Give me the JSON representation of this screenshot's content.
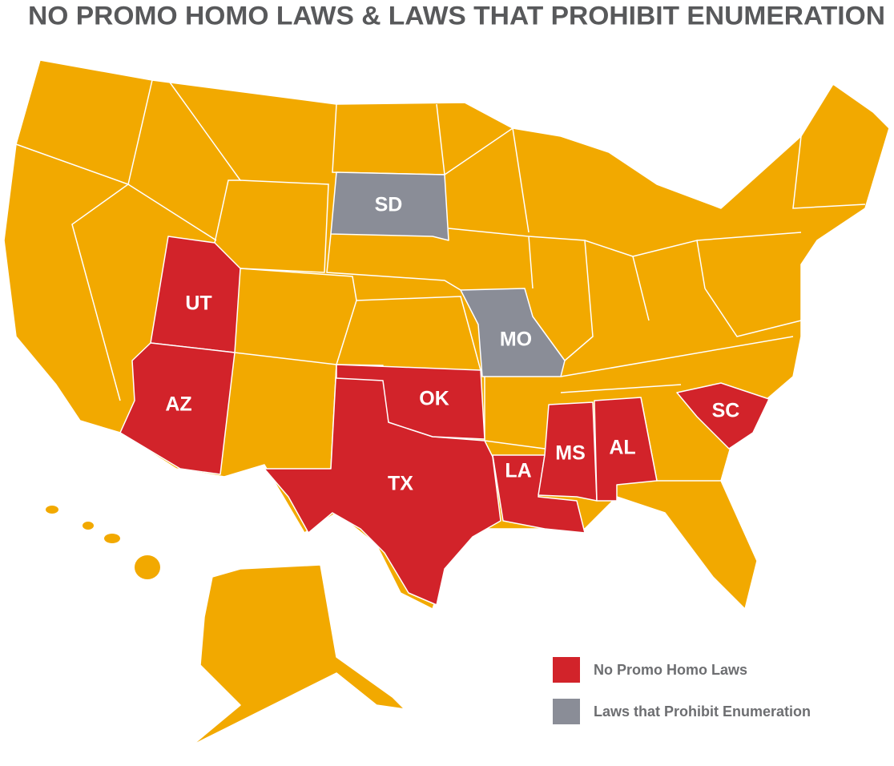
{
  "title": "NO PROMO HOMO LAWS & LAWS THAT PROHIBIT ENUMERATION",
  "base_color": "#f2a900",
  "states": [
    {
      "label": "SD",
      "color": "#8a8d97"
    },
    {
      "label": "MO",
      "color": "#8a8d97"
    },
    {
      "label": "UT",
      "color": "#d2232a"
    },
    {
      "label": "AZ",
      "color": "#d2232a"
    },
    {
      "label": "TX",
      "color": "#d2232a"
    },
    {
      "label": "OK",
      "color": "#d2232a"
    },
    {
      "label": "LA",
      "color": "#d2232a"
    },
    {
      "label": "MS",
      "color": "#d2232a"
    },
    {
      "label": "AL",
      "color": "#d2232a"
    },
    {
      "label": "SC",
      "color": "#d2232a"
    }
  ],
  "legend": [
    {
      "label": "No Promo Homo Laws",
      "color": "#d2232a"
    },
    {
      "label": "Laws that Prohibit Enumeration",
      "color": "#8a8d97"
    }
  ]
}
